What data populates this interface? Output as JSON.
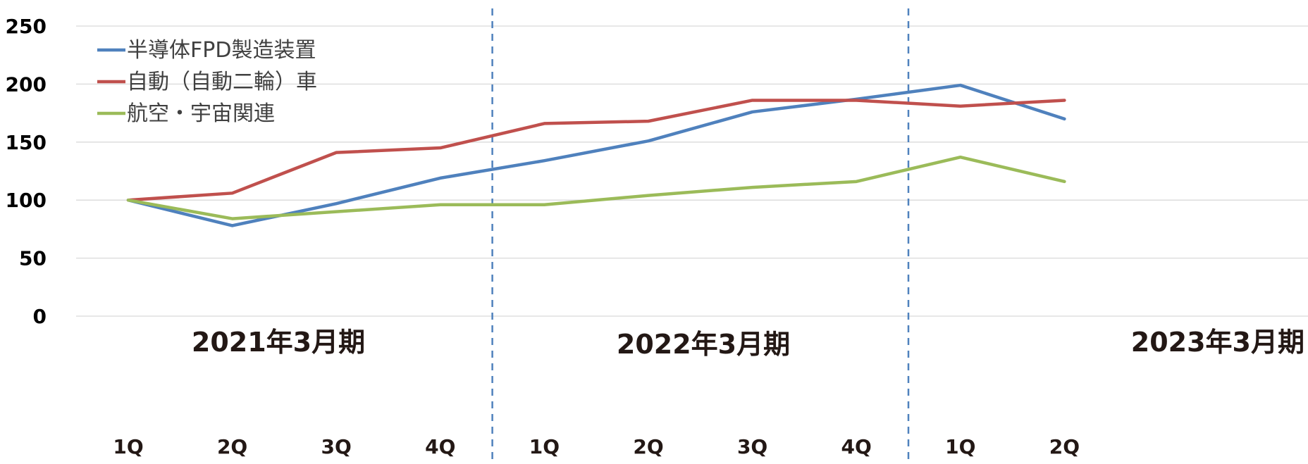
{
  "chart_data": {
    "type": "line",
    "title": "",
    "xlabel": "",
    "ylabel": "",
    "ylim": [
      0,
      250
    ],
    "yticks": [
      "0",
      "50",
      "100",
      "150",
      "200",
      "250"
    ],
    "grid": true,
    "legend_position": "top-left",
    "categories": [
      "1Q",
      "2Q",
      "3Q",
      "4Q",
      "1Q",
      "2Q",
      "3Q",
      "4Q",
      "1Q",
      "2Q"
    ],
    "periods": [
      "2021年3月期",
      "2022年3月期",
      "2023年3月期"
    ],
    "series": [
      {
        "name": "半導体FPD製造装置",
        "color": "#4F81BD",
        "values": [
          100,
          78,
          97,
          119,
          134,
          151,
          176,
          187,
          199,
          170
        ]
      },
      {
        "name": "自動（自動二輪）車",
        "color": "#C0504D",
        "values": [
          100,
          106,
          141,
          145,
          166,
          168,
          186,
          186,
          181,
          186
        ]
      },
      {
        "name": "航空・宇宙関連",
        "color": "#9BBB59",
        "values": [
          100,
          84,
          90,
          96,
          96,
          104,
          111,
          116,
          137,
          116
        ]
      }
    ]
  }
}
